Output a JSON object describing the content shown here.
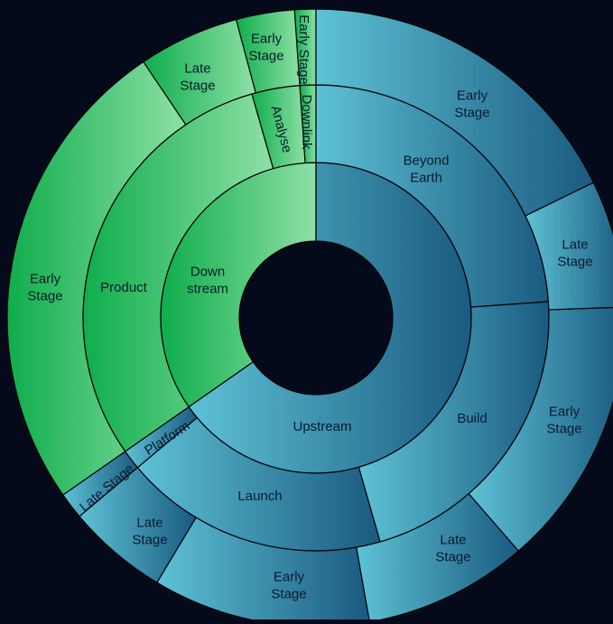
{
  "chart_data": {
    "type": "sunburst",
    "title": "",
    "colors": {
      "background": "#050a1a",
      "stroke": "#000000",
      "downstream_light": "#8ee0a6",
      "downstream_dark": "#0fad4c",
      "upstream_light": "#5ec2d6",
      "upstream_dark": "#1a5a80"
    },
    "rings": [
      {
        "level": 1,
        "segments": [
          {
            "label": "Down\nstream",
            "start": 180,
            "end": 0,
            "family": "downstream"
          },
          {
            "label": "Upstream",
            "start": 0,
            "end": 180,
            "family": "upstream"
          }
        ]
      },
      {
        "level": 2,
        "segments": [
          {
            "label": "Downlink",
            "start": 180,
            "end": 176,
            "family": "downstream"
          },
          {
            "label": "Analyse",
            "start": 176,
            "end": 163,
            "family": "downstream"
          },
          {
            "label": "Product",
            "start": 163,
            "end": 34,
            "family": "downstream"
          },
          {
            "label": "Platform",
            "start": 34,
            "end": 29,
            "family": "upstream"
          },
          {
            "label": "Launch",
            "start": 29,
            "end": 23,
            "family": "upstream"
          },
          {
            "label": "Build",
            "start": 23,
            "end": 138,
            "family": "upstream"
          },
          {
            "label": "Beyond\nEarth",
            "start": 138,
            "end": 180,
            "family": "upstream"
          }
        ]
      }
    ]
  }
}
